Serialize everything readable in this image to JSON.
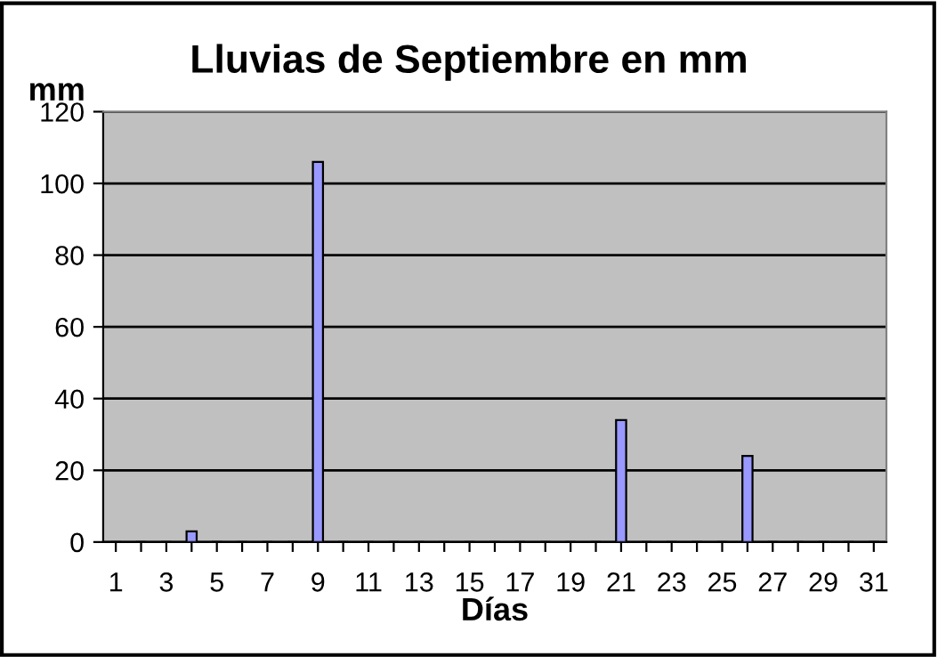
{
  "chart_data": {
    "type": "bar",
    "title": "Lluvias de Septiembre en mm",
    "xlabel": "Días",
    "ylabel": "mm",
    "categories": [
      "1",
      null,
      "3",
      null,
      "5",
      null,
      "7",
      null,
      "9",
      null,
      "11",
      null,
      "13",
      null,
      "15",
      null,
      "17",
      null,
      "19",
      null,
      "21",
      null,
      "23",
      null,
      "25",
      null,
      "27",
      null,
      "29",
      null,
      "31"
    ],
    "values": [
      0,
      0,
      0,
      3,
      0,
      0,
      0,
      0,
      106,
      0,
      0,
      0,
      0,
      0,
      0,
      0,
      0,
      0,
      0,
      0,
      34,
      0,
      0,
      0,
      0,
      24,
      0,
      0,
      0,
      0,
      0
    ],
    "color": "#9999ff",
    "ylim": [
      0,
      120
    ],
    "yticks": [
      0,
      20,
      40,
      60,
      80,
      100,
      120
    ],
    "grid": "y",
    "legend": false
  }
}
